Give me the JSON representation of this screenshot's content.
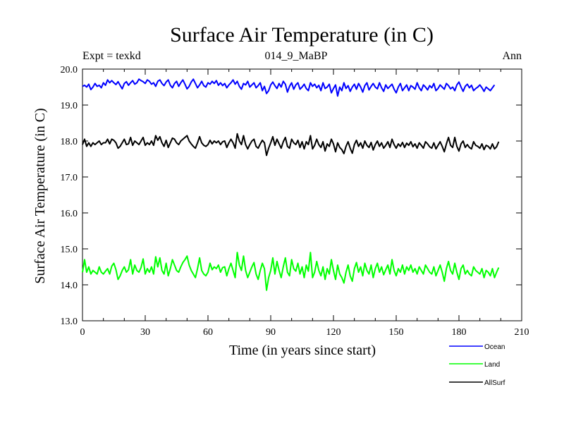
{
  "chart_data": {
    "type": "line",
    "title": "Surface Air Temperature (in C)",
    "subtitle": "014_9_MaBP",
    "left_label": "Expt = texkd",
    "right_label": "Ann",
    "xlabel": "Time (in years since start)",
    "ylabel": "Surface Air Temperature (in C)",
    "xlim": [
      0,
      210
    ],
    "ylim": [
      13.0,
      20.0
    ],
    "xticks": [
      0,
      30,
      60,
      90,
      120,
      150,
      180,
      210
    ],
    "yticks": [
      13.0,
      14.0,
      15.0,
      16.0,
      17.0,
      18.0,
      19.0,
      20.0
    ],
    "xtick_labels": [
      "0",
      "30",
      "60",
      "90",
      "120",
      "150",
      "180",
      "210"
    ],
    "ytick_labels": [
      "13.0",
      "14.0",
      "15.0",
      "16.0",
      "17.0",
      "18.0",
      "19.0",
      "20.0"
    ],
    "series": [
      {
        "name": "Ocean",
        "color": "#0000ff",
        "values": [
          19.52,
          19.55,
          19.5,
          19.58,
          19.43,
          19.5,
          19.6,
          19.52,
          19.55,
          19.48,
          19.62,
          19.55,
          19.7,
          19.62,
          19.68,
          19.62,
          19.57,
          19.65,
          19.55,
          19.45,
          19.6,
          19.65,
          19.55,
          19.62,
          19.68,
          19.58,
          19.62,
          19.72,
          19.68,
          19.65,
          19.6,
          19.7,
          19.66,
          19.58,
          19.62,
          19.52,
          19.66,
          19.7,
          19.6,
          19.54,
          19.64,
          19.7,
          19.55,
          19.48,
          19.6,
          19.66,
          19.52,
          19.62,
          19.7,
          19.58,
          19.45,
          19.52,
          19.64,
          19.72,
          19.6,
          19.48,
          19.56,
          19.66,
          19.54,
          19.5,
          19.62,
          19.58,
          19.66,
          19.6,
          19.68,
          19.55,
          19.62,
          19.54,
          19.6,
          19.48,
          19.56,
          19.62,
          19.7,
          19.58,
          19.66,
          19.52,
          19.44,
          19.6,
          19.56,
          19.66,
          19.5,
          19.56,
          19.62,
          19.48,
          19.54,
          19.62,
          19.4,
          19.52,
          19.32,
          19.4,
          19.56,
          19.64,
          19.54,
          19.46,
          19.6,
          19.5,
          19.66,
          19.58,
          19.36,
          19.52,
          19.62,
          19.44,
          19.56,
          19.62,
          19.44,
          19.5,
          19.58,
          19.46,
          19.4,
          19.62,
          19.52,
          19.58,
          19.48,
          19.55,
          19.4,
          19.62,
          19.46,
          19.5,
          19.58,
          19.34,
          19.46,
          19.56,
          19.25,
          19.5,
          19.4,
          19.62,
          19.46,
          19.54,
          19.38,
          19.5,
          19.58,
          19.44,
          19.6,
          19.5,
          19.36,
          19.54,
          19.62,
          19.42,
          19.52,
          19.6,
          19.5,
          19.45,
          19.62,
          19.48,
          19.38,
          19.56,
          19.46,
          19.52,
          19.58,
          19.44,
          19.34,
          19.5,
          19.6,
          19.4,
          19.48,
          19.56,
          19.4,
          19.54,
          19.5,
          19.44,
          19.62,
          19.48,
          19.4,
          19.56,
          19.5,
          19.42,
          19.54,
          19.48,
          19.6,
          19.4,
          19.46,
          19.56,
          19.5,
          19.44,
          19.6,
          19.54,
          19.45,
          19.5,
          19.4,
          19.56,
          19.64,
          19.5,
          19.38,
          19.52,
          19.58,
          19.48,
          19.55,
          19.4,
          19.46,
          19.5,
          19.56,
          19.48,
          19.38,
          19.5,
          19.45,
          19.4,
          19.48,
          19.56
        ]
      },
      {
        "name": "Land",
        "color": "#00ff00",
        "values": [
          14.35,
          14.7,
          14.35,
          14.5,
          14.3,
          14.4,
          14.35,
          14.3,
          14.5,
          14.35,
          14.3,
          14.38,
          14.45,
          14.3,
          14.52,
          14.6,
          14.42,
          14.15,
          14.25,
          14.4,
          14.5,
          14.35,
          14.42,
          14.7,
          14.3,
          14.55,
          14.4,
          14.35,
          14.48,
          14.72,
          14.3,
          14.45,
          14.35,
          14.5,
          14.3,
          14.78,
          14.5,
          14.75,
          14.4,
          14.3,
          14.6,
          14.25,
          14.45,
          14.7,
          14.55,
          14.4,
          14.35,
          14.5,
          14.62,
          14.7,
          14.8,
          14.55,
          14.4,
          14.3,
          14.2,
          14.45,
          14.75,
          14.4,
          14.3,
          14.25,
          14.35,
          14.6,
          14.42,
          14.5,
          14.45,
          14.55,
          14.35,
          14.48,
          14.5,
          14.25,
          14.45,
          14.6,
          14.4,
          14.2,
          14.9,
          14.55,
          14.4,
          14.8,
          14.4,
          14.2,
          14.35,
          14.5,
          14.62,
          14.3,
          14.15,
          14.4,
          14.6,
          14.45,
          13.85,
          14.2,
          14.4,
          14.75,
          14.3,
          14.65,
          14.4,
          14.2,
          14.5,
          14.75,
          14.35,
          14.25,
          14.7,
          14.45,
          14.38,
          14.6,
          14.3,
          14.5,
          14.2,
          14.55,
          14.38,
          14.9,
          14.2,
          14.35,
          14.65,
          14.4,
          14.25,
          14.5,
          14.15,
          14.45,
          14.3,
          14.7,
          14.4,
          14.15,
          14.55,
          14.3,
          14.2,
          14.05,
          14.35,
          14.55,
          14.25,
          14.1,
          14.45,
          14.62,
          14.35,
          14.5,
          14.25,
          14.6,
          14.4,
          14.3,
          14.55,
          14.2,
          14.45,
          14.6,
          14.35,
          14.5,
          14.28,
          14.42,
          14.55,
          14.3,
          14.7,
          14.4,
          14.25,
          14.45,
          14.35,
          14.55,
          14.3,
          14.5,
          14.4,
          14.55,
          14.35,
          14.45,
          14.3,
          14.5,
          14.4,
          14.3,
          14.55,
          14.45,
          14.35,
          14.3,
          14.5,
          14.25,
          14.4,
          14.55,
          14.35,
          14.1,
          14.45,
          14.65,
          14.4,
          14.3,
          14.6,
          14.35,
          14.15,
          14.45,
          14.55,
          14.3,
          14.4,
          14.3,
          14.25,
          14.5,
          14.4,
          14.35,
          14.3,
          14.45,
          14.2,
          14.4,
          14.35,
          14.25,
          14.45,
          14.2,
          14.35,
          14.48
        ]
      },
      {
        "name": "AllSurf",
        "color": "#000000",
        "values": [
          17.9,
          18.05,
          17.85,
          17.95,
          17.85,
          17.95,
          17.9,
          17.95,
          18.0,
          17.9,
          17.95,
          17.95,
          18.05,
          17.92,
          18.05,
          18.02,
          17.95,
          17.8,
          17.85,
          17.95,
          18.05,
          17.9,
          17.92,
          18.1,
          17.88,
          18.0,
          17.95,
          17.9,
          18.0,
          18.1,
          17.88,
          17.95,
          17.9,
          18.0,
          17.88,
          18.15,
          18.02,
          18.12,
          17.95,
          17.85,
          18.02,
          17.82,
          17.95,
          18.08,
          18.05,
          17.95,
          17.9,
          18.0,
          18.05,
          18.1,
          18.15,
          18.0,
          17.92,
          17.85,
          17.8,
          17.95,
          18.12,
          17.95,
          17.88,
          17.85,
          17.9,
          18.02,
          17.92,
          18.0,
          17.95,
          18.0,
          17.9,
          17.98,
          18.0,
          17.82,
          17.95,
          18.05,
          17.95,
          17.8,
          18.2,
          18.0,
          17.9,
          18.15,
          17.9,
          17.78,
          17.9,
          18.0,
          18.05,
          17.85,
          17.8,
          17.92,
          18.02,
          17.95,
          17.6,
          17.8,
          17.95,
          18.12,
          17.88,
          18.05,
          17.92,
          17.8,
          17.98,
          18.1,
          17.85,
          17.8,
          18.05,
          17.95,
          17.9,
          18.02,
          17.82,
          17.98,
          17.78,
          17.98,
          17.9,
          18.15,
          17.78,
          17.88,
          18.05,
          17.9,
          17.82,
          17.98,
          17.72,
          17.92,
          17.85,
          18.05,
          17.92,
          17.7,
          17.95,
          17.82,
          17.76,
          17.65,
          17.85,
          17.98,
          17.8,
          17.66,
          17.9,
          18.02,
          17.85,
          17.95,
          17.8,
          18.0,
          17.88,
          17.82,
          17.96,
          17.75,
          17.9,
          18.0,
          17.85,
          17.95,
          17.8,
          17.88,
          17.98,
          17.82,
          18.05,
          17.9,
          17.8,
          17.92,
          17.85,
          17.96,
          17.82,
          17.94,
          17.88,
          17.98,
          17.84,
          17.92,
          17.8,
          17.95,
          17.88,
          17.8,
          17.98,
          17.92,
          17.84,
          17.8,
          17.95,
          17.78,
          17.88,
          17.98,
          17.85,
          17.7,
          17.92,
          18.1,
          17.88,
          17.82,
          18.1,
          17.85,
          17.72,
          17.92,
          18.0,
          17.82,
          17.9,
          17.82,
          17.78,
          17.98,
          17.88,
          17.85,
          17.8,
          17.92,
          17.76,
          17.88,
          17.85,
          17.78,
          17.92,
          17.78,
          17.84,
          17.98
        ]
      }
    ],
    "legend": [
      "Ocean",
      "Land",
      "AllSurf"
    ],
    "legend_position": "bottom-right"
  }
}
